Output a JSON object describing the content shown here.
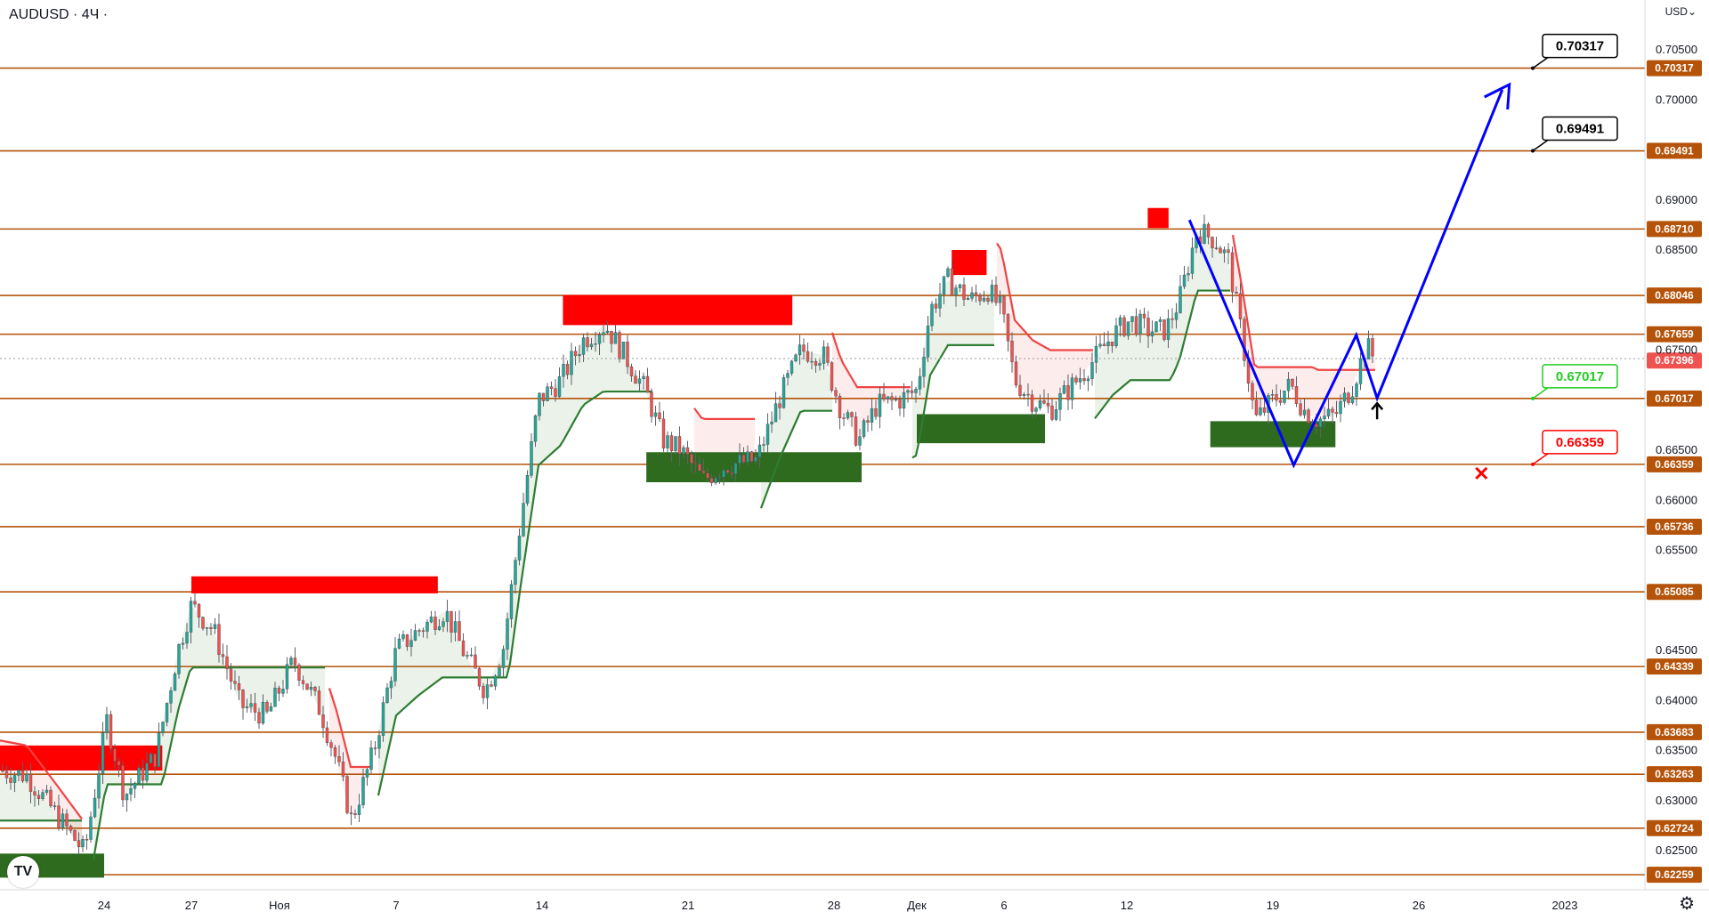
{
  "header": {
    "symbol_title": "AUDUSD · 4Ч ·",
    "currency": "USD⌄"
  },
  "colors": {
    "level_line": "#b45309",
    "bull_candle": "#26a69a",
    "bear_candle": "#ef5350",
    "supertrend_up": "#2e7d32",
    "supertrend_down": "#ef4444",
    "supply_zone": "#ff0000",
    "demand_zone": "#2e6b1e",
    "forecast_path": "#0000ff"
  },
  "chart_data": {
    "type": "candlestick",
    "title": "",
    "y_axis": {
      "min": 0.6211,
      "max": 0.7074,
      "ticks": [
        "0.70500",
        "0.70000",
        "0.69000",
        "0.68500",
        "0.67500",
        "0.66500",
        "0.66000",
        "0.65500",
        "0.64500",
        "0.64000",
        "0.63500",
        "0.63000",
        "0.62500"
      ]
    },
    "x_axis": {
      "ticks": [
        "24",
        "27",
        "Ноя",
        "7",
        "14",
        "21",
        "28",
        "Дек",
        "6",
        "12",
        "19",
        "26",
        "2023"
      ]
    },
    "last_price": "0.67396",
    "levels": [
      "0.70317",
      "0.69491",
      "0.68710",
      "0.68046",
      "0.67659",
      "0.67017",
      "0.66359",
      "0.65736",
      "0.65085",
      "0.64339",
      "0.63683",
      "0.63263",
      "0.62724",
      "0.62259"
    ],
    "supply_zones": [
      {
        "from": "Oct 20",
        "to": "Oct 26",
        "low": 0.633,
        "high": 0.6355
      },
      {
        "from": "Oct 27",
        "to": "Nov 9",
        "low": 0.6507,
        "high": 0.6524
      },
      {
        "from": "Nov 15",
        "to": "Nov 26",
        "low": 0.6775,
        "high": 0.6805
      },
      {
        "from": "Dec 3",
        "to": "Dec 5",
        "low": 0.6825,
        "high": 0.685
      },
      {
        "from": "Dec 13",
        "to": "Dec 14",
        "low": 0.6872,
        "high": 0.6892
      }
    ],
    "demand_zones": [
      {
        "from": "Oct 20",
        "to": "Oct 24",
        "low": 0.6223,
        "high": 0.6247
      },
      {
        "from": "Nov 19",
        "to": "Nov 29",
        "low": 0.6618,
        "high": 0.6648
      },
      {
        "from": "Dec 1",
        "to": "Dec 8",
        "low": 0.6657,
        "high": 0.6686
      },
      {
        "from": "Dec 16",
        "to": "Dec 22",
        "low": 0.6653,
        "high": 0.6679
      }
    ],
    "forecast_path": [
      {
        "date": "Dec 15",
        "price": 0.688
      },
      {
        "date": "Dec 20",
        "price": 0.6635
      },
      {
        "date": "Dec 23",
        "price": 0.6765
      },
      {
        "date": "Dec 24",
        "price": 0.6702
      },
      {
        "date": "Dec 30",
        "price": 0.701
      }
    ],
    "callouts": [
      {
        "label": "0.70317",
        "color": "#000000"
      },
      {
        "label": "0.69491",
        "color": "#000000"
      },
      {
        "label": "0.67017",
        "color": "#22cc22"
      },
      {
        "label": "0.66359",
        "color": "#ff0000"
      }
    ],
    "markers": [
      {
        "type": "arrow-up",
        "date": "Dec 24",
        "price": 0.6688
      },
      {
        "type": "cross",
        "date": "Dec 29",
        "price": 0.6627
      }
    ]
  }
}
